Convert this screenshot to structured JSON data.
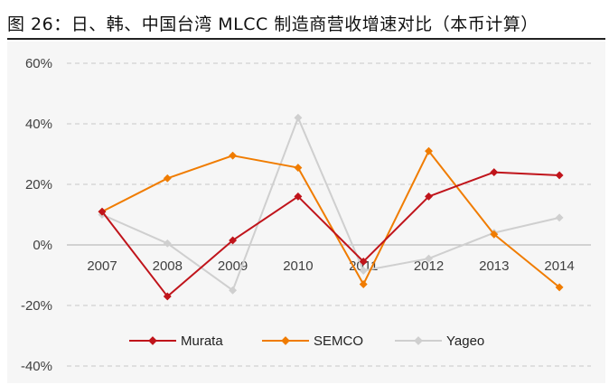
{
  "figure": {
    "title": "图  26：日、韩、中国台湾 MLCC 制造商营收增速对比（本币计算）"
  },
  "chart_data": {
    "type": "line",
    "title": "图  26：日、韩、中国台湾 MLCC 制造商营收增速对比（本币计算）",
    "xlabel": "",
    "ylabel": "",
    "categories": [
      "2007",
      "2008",
      "2009",
      "2010",
      "2011",
      "2012",
      "2013",
      "2014"
    ],
    "yticks": [
      "60%",
      "40%",
      "20%",
      "0%",
      "-20%",
      "-40%"
    ],
    "ytick_values": [
      60,
      40,
      20,
      0,
      -20,
      -40
    ],
    "ylim": [
      -40,
      60
    ],
    "grid": true,
    "legend_position": "bottom",
    "series": [
      {
        "name": "Murata",
        "color": "#c0141b",
        "values": [
          11,
          -17,
          1.5,
          16,
          -5.5,
          16,
          24,
          23
        ]
      },
      {
        "name": "SEMCO",
        "color": "#f07c00",
        "values": [
          11,
          22,
          29.5,
          25.5,
          -13,
          31,
          3.5,
          -14
        ]
      },
      {
        "name": "Yageo",
        "color": "#cfcfcf",
        "values": [
          10,
          0.5,
          -15,
          42,
          -8.5,
          -4.5,
          4,
          9
        ]
      }
    ]
  }
}
